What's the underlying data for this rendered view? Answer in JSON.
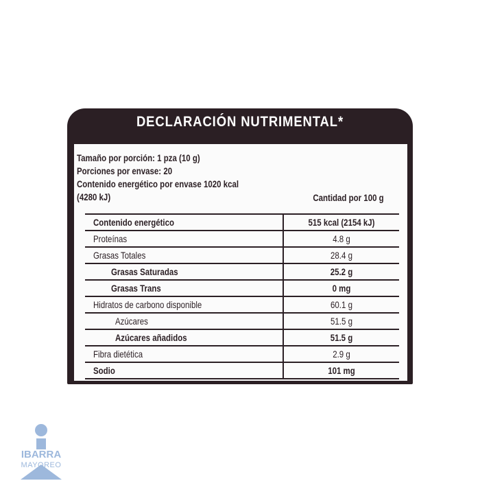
{
  "header": {
    "title": "DECLARACIÓN NUTRIMENTAL*"
  },
  "info": [
    "Tamaño por porción: 1 pza (10 g)",
    "Porciones por envase: 20",
    "Contenido energético por envase 1020 kcal",
    "(4280 kJ)"
  ],
  "column_header": "Cantidad por 100 g",
  "table": {
    "rows": [
      [
        "Contenido energético",
        "515 kcal (2154 kJ)"
      ],
      [
        "Proteínas",
        "4.8 g"
      ],
      [
        "Grasas Totales",
        "28.4 g"
      ],
      [
        "Grasas Saturadas",
        "25.2 g"
      ],
      [
        "Grasas Trans",
        "0 mg"
      ],
      [
        "Hidratos de carbono disponible",
        "60.1 g"
      ],
      [
        "Azúcares",
        "51.5 g"
      ],
      [
        "Azúcares añadidos",
        "51.5 g"
      ],
      [
        "Fibra dietética",
        "2.9 g"
      ],
      [
        "Sodio",
        "101 mg"
      ]
    ]
  },
  "logo": {
    "name": "IBARRA",
    "tagline": "MAYOREO"
  }
}
